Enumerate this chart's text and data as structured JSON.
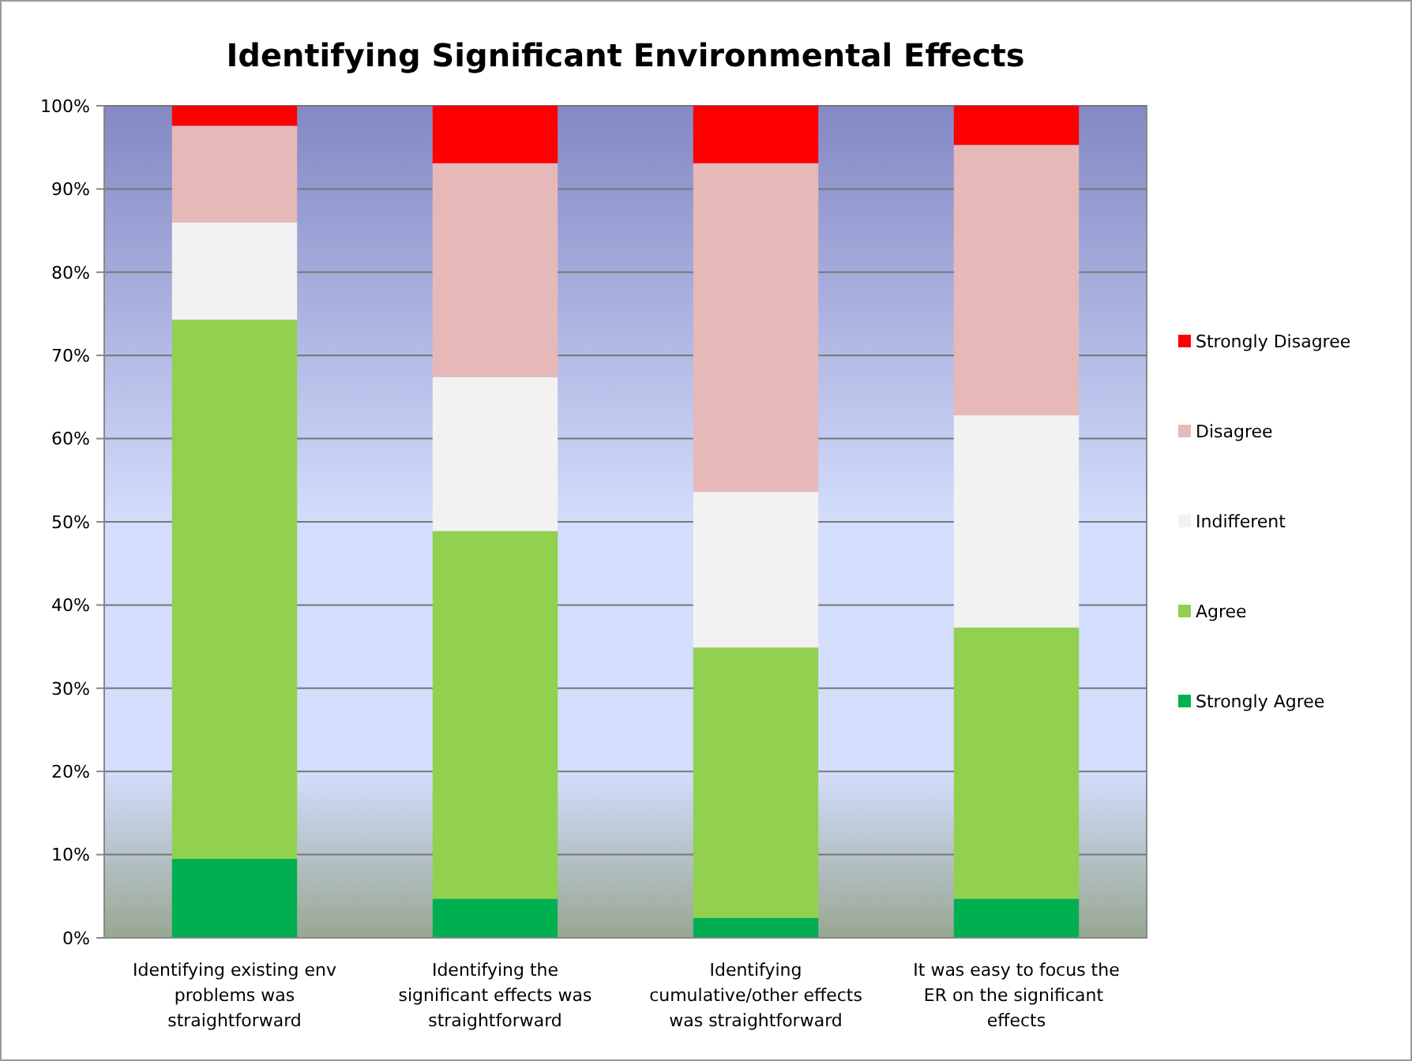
{
  "chart_data": {
    "type": "bar",
    "stacked": true,
    "title": "Identifying Significant Environmental Effects",
    "categories": [
      "Identifying existing env problems was straightforward",
      "Identifying the significant effects was straightforward",
      "Identifying cumulative/other effects was straightforward",
      "It was easy to focus the ER on the significant  effects"
    ],
    "series": [
      {
        "name": "Strongly Agree",
        "color": "#00b050",
        "values": [
          9.5,
          4.7,
          2.4,
          4.7
        ]
      },
      {
        "name": "Agree",
        "color": "#92d050",
        "values": [
          64.8,
          44.2,
          32.5,
          32.6
        ]
      },
      {
        "name": "Indifferent",
        "color": "#f2f2f2",
        "values": [
          11.7,
          18.5,
          18.7,
          25.5
        ]
      },
      {
        "name": "Disagree",
        "color": "#e6b9b8",
        "values": [
          11.6,
          25.7,
          39.5,
          32.5
        ]
      },
      {
        "name": "Strongly Disagree",
        "color": "#ff0000",
        "values": [
          2.4,
          6.9,
          6.9,
          4.7
        ]
      }
    ],
    "ylim": [
      0,
      100
    ],
    "yticks": [
      {
        "value": 0,
        "label": "0%"
      },
      {
        "value": 10,
        "label": "10%"
      },
      {
        "value": 20,
        "label": "20%"
      },
      {
        "value": 30,
        "label": "30%"
      },
      {
        "value": 40,
        "label": "40%"
      },
      {
        "value": 50,
        "label": "50%"
      },
      {
        "value": 60,
        "label": "60%"
      },
      {
        "value": 70,
        "label": "70%"
      },
      {
        "value": 80,
        "label": "80%"
      },
      {
        "value": 90,
        "label": "90%"
      },
      {
        "value": 100,
        "label": "100%"
      }
    ],
    "grid": "y",
    "legend": "right"
  }
}
